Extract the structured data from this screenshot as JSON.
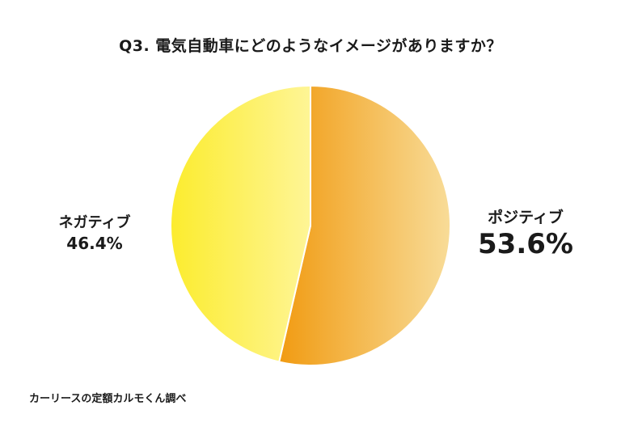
{
  "chart_data": {
    "type": "pie",
    "title": "Q3. 電気自動車にどのようなイメージがありますか？",
    "series": [
      {
        "name": "ポジティブ",
        "value": 53.6,
        "label": "53.6%",
        "gradient": [
          "#F19B12",
          "#F8DC98"
        ]
      },
      {
        "name": "ネガティブ",
        "value": 46.4,
        "label": "46.4%",
        "gradient": [
          "#FCEC2E",
          "#FEF596"
        ]
      }
    ],
    "start_angle": "12 o'clock",
    "direction": "clockwise"
  },
  "source": "カーリースの定額カルモくん調べ"
}
